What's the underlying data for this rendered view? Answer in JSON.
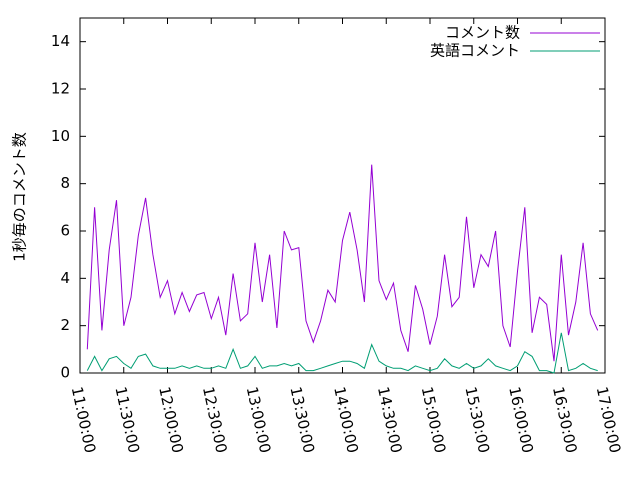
{
  "chart_data": {
    "type": "line",
    "ylabel": "1秒毎のコメント数",
    "x": [
      "11:05:00",
      "11:10:00",
      "11:15:00",
      "11:20:00",
      "11:25:00",
      "11:30:00",
      "11:35:00",
      "11:40:00",
      "11:45:00",
      "11:50:00",
      "11:55:00",
      "12:00:00",
      "12:05:00",
      "12:10:00",
      "12:15:00",
      "12:20:00",
      "12:25:00",
      "12:30:00",
      "12:35:00",
      "12:40:00",
      "12:45:00",
      "12:50:00",
      "12:55:00",
      "13:00:00",
      "13:05:00",
      "13:10:00",
      "13:15:00",
      "13:20:00",
      "13:25:00",
      "13:30:00",
      "13:35:00",
      "13:40:00",
      "13:45:00",
      "13:50:00",
      "13:55:00",
      "14:00:00",
      "14:05:00",
      "14:10:00",
      "14:15:00",
      "14:20:00",
      "14:25:00",
      "14:30:00",
      "14:35:00",
      "14:40:00",
      "14:45:00",
      "14:50:00",
      "14:55:00",
      "15:00:00",
      "15:05:00",
      "15:10:00",
      "15:15:00",
      "15:20:00",
      "15:25:00",
      "15:30:00",
      "15:35:00",
      "15:40:00",
      "15:45:00",
      "15:50:00",
      "15:55:00",
      "16:00:00",
      "16:05:00",
      "16:10:00",
      "16:15:00",
      "16:20:00",
      "16:25:00",
      "16:30:00",
      "16:35:00",
      "16:40:00",
      "16:45:00",
      "16:50:00",
      "16:55:00"
    ],
    "series": [
      {
        "name": "コメント数",
        "color": "#9400d3",
        "values": [
          1.0,
          7.0,
          1.8,
          5.2,
          7.3,
          2.0,
          3.2,
          5.8,
          7.4,
          5.0,
          3.2,
          3.9,
          2.5,
          3.4,
          2.6,
          3.3,
          3.4,
          2.3,
          3.2,
          1.6,
          4.2,
          2.2,
          2.5,
          5.5,
          3.0,
          5.0,
          1.9,
          6.0,
          5.2,
          5.3,
          2.2,
          1.3,
          2.2,
          3.5,
          3.0,
          5.6,
          6.8,
          5.2,
          3.0,
          8.8,
          3.9,
          3.1,
          3.8,
          1.8,
          0.9,
          3.7,
          2.7,
          1.2,
          2.4,
          5.0,
          2.8,
          3.2,
          6.6,
          3.6,
          5.0,
          4.5,
          6.0,
          2.0,
          1.1,
          4.3,
          7.0,
          1.7,
          3.2,
          2.9,
          0.5,
          5.0,
          1.6,
          3.0,
          5.5,
          2.5,
          1.8
        ]
      },
      {
        "name": "英語コメント",
        "color": "#009e73",
        "values": [
          0.1,
          0.7,
          0.1,
          0.6,
          0.7,
          0.4,
          0.2,
          0.7,
          0.8,
          0.3,
          0.2,
          0.2,
          0.2,
          0.3,
          0.2,
          0.3,
          0.2,
          0.2,
          0.3,
          0.2,
          1.0,
          0.2,
          0.3,
          0.7,
          0.2,
          0.3,
          0.3,
          0.4,
          0.3,
          0.4,
          0.1,
          0.1,
          0.2,
          0.3,
          0.4,
          0.5,
          0.5,
          0.4,
          0.2,
          1.2,
          0.5,
          0.3,
          0.2,
          0.2,
          0.1,
          0.3,
          0.2,
          0.1,
          0.2,
          0.6,
          0.3,
          0.2,
          0.4,
          0.2,
          0.3,
          0.6,
          0.3,
          0.2,
          0.1,
          0.3,
          0.9,
          0.7,
          0.1,
          0.1,
          0.0,
          1.7,
          0.1,
          0.2,
          0.4,
          0.2,
          0.1
        ]
      }
    ],
    "xlim": [
      "11:00:00",
      "17:00:00"
    ],
    "xticks": [
      "11:00:00",
      "11:30:00",
      "12:00:00",
      "12:30:00",
      "13:00:00",
      "13:30:00",
      "14:00:00",
      "14:30:00",
      "15:00:00",
      "15:30:00",
      "16:00:00",
      "16:30:00",
      "17:00:00"
    ],
    "ylim": [
      0,
      15
    ],
    "yticks": [
      0,
      2,
      4,
      6,
      8,
      10,
      12,
      14
    ],
    "legend": "upper right"
  }
}
